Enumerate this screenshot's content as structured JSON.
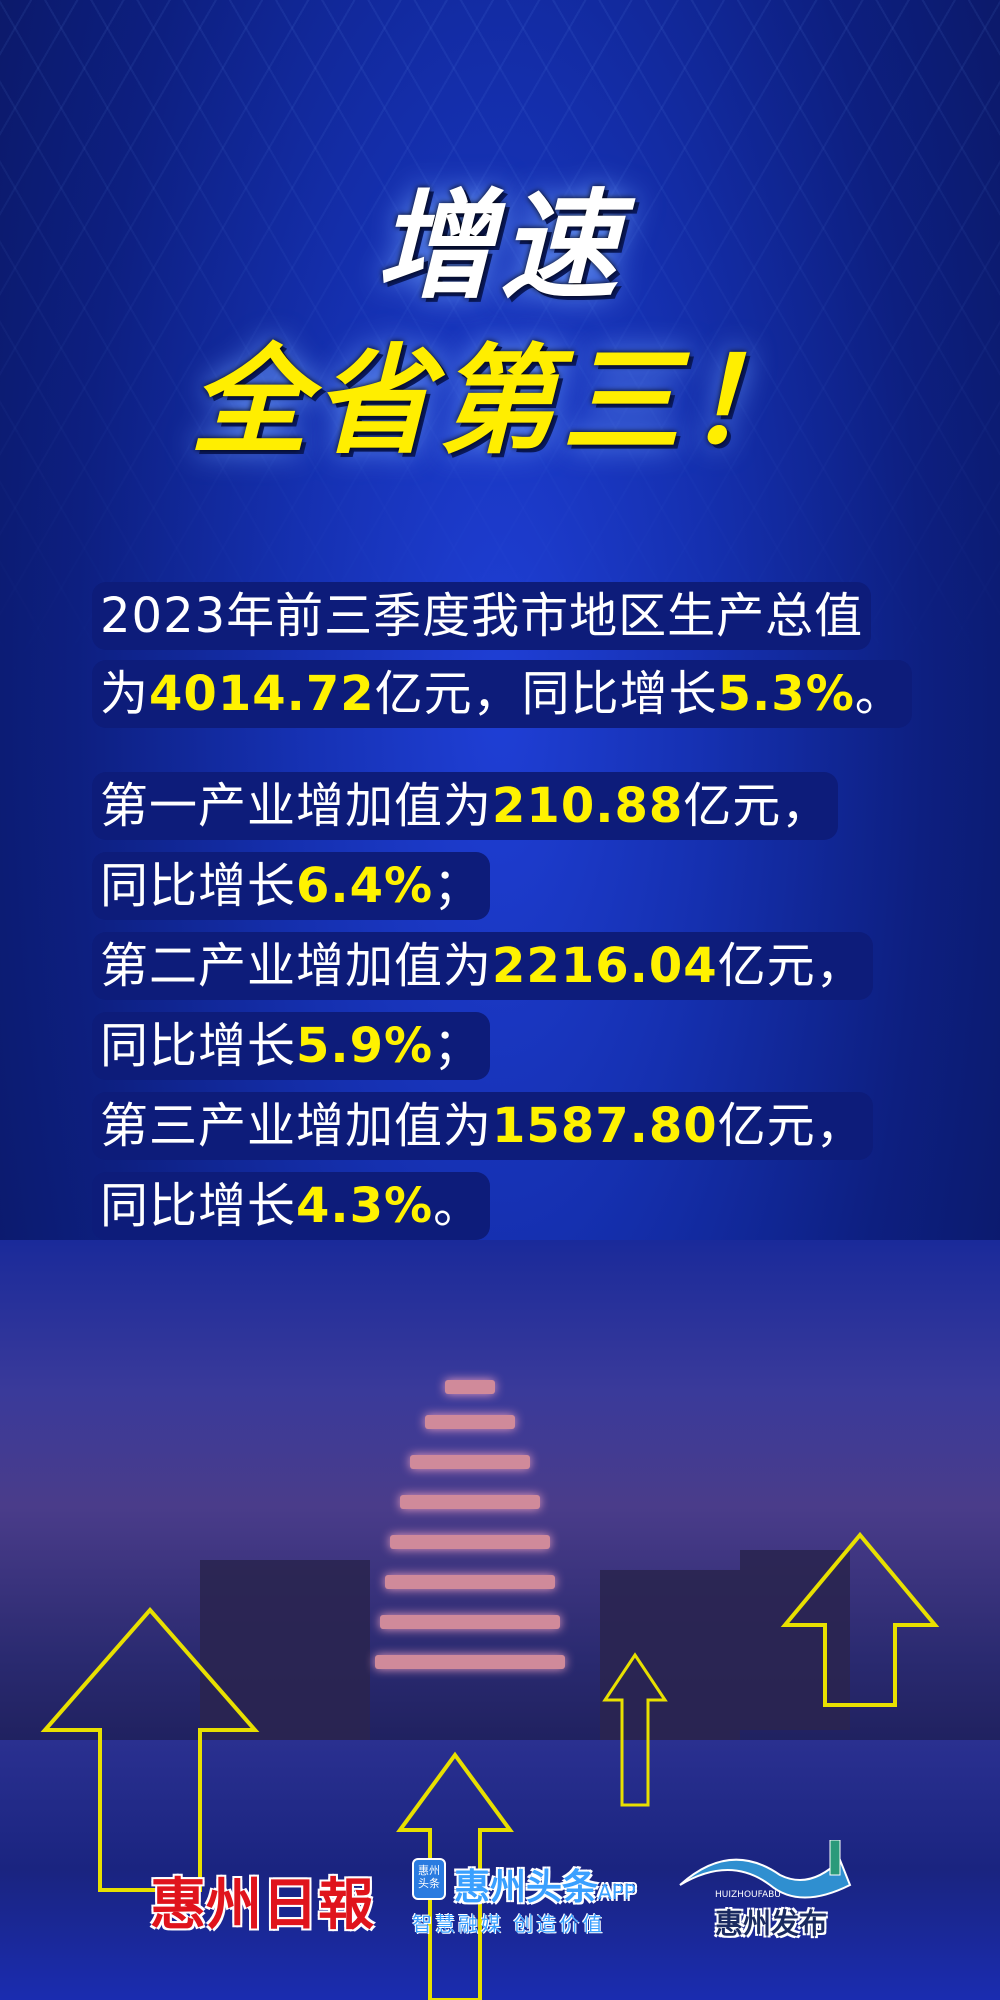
{
  "headline": {
    "line1": "增速",
    "line2": "全省第三！"
  },
  "summary": {
    "line1": "2023年前三季度我市地区生产总值",
    "line2_pre": "为",
    "gdp": "4014.72",
    "line2_mid": "亿元，同比增长",
    "gdp_growth": "5.3%",
    "line2_end": "。"
  },
  "industries": [
    {
      "label": "第一产业增加值为",
      "value": "210.88",
      "unit": "亿元，",
      "growth_pre": "同比增长",
      "growth": "6.4%",
      "end": "；"
    },
    {
      "label": "第二产业增加值为",
      "value": "2216.04",
      "unit": "亿元，",
      "growth_pre": "同比增长",
      "growth": "5.9%",
      "end": "；"
    },
    {
      "label": "第三产业增加值为",
      "value": "1587.80",
      "unit": "亿元，",
      "growth_pre": "同比增长",
      "growth": "4.3%",
      "end": "。"
    }
  ],
  "logos": {
    "huizhou_daily": "惠州日報",
    "app_icon": "惠州头条",
    "app_name": "惠州头条",
    "app_suffix": "APP",
    "app_slogan": "智慧融媒 创造价值",
    "fabu_en": "HUIZHOUFABU",
    "fabu_name": "惠州发布"
  },
  "colors": {
    "highlight": "#fff200",
    "background": "#1530b0",
    "arrow": "#e8e000"
  }
}
